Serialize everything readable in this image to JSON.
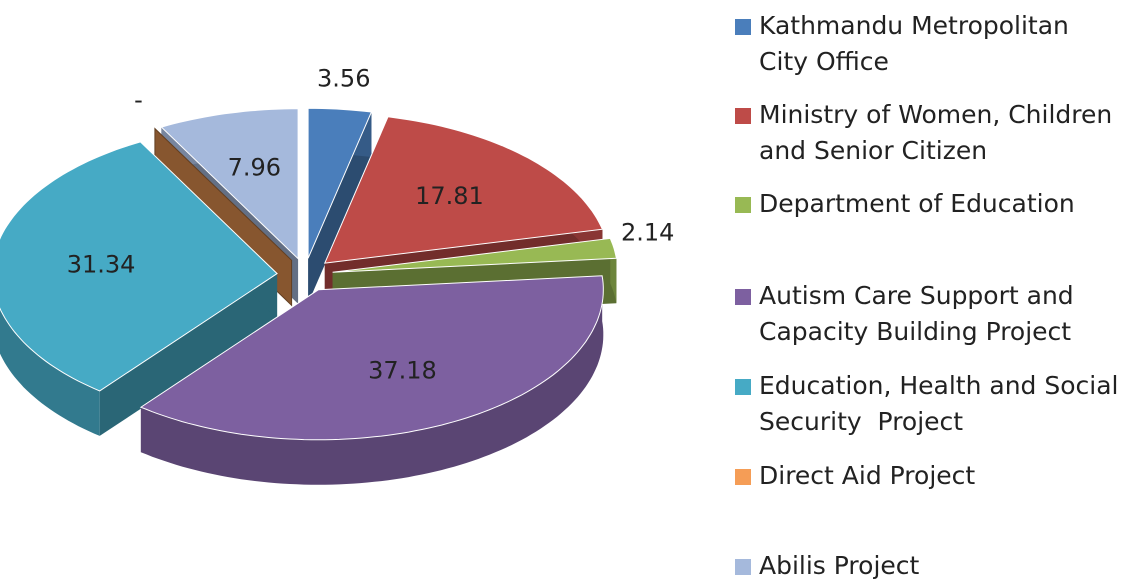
{
  "chart_data": {
    "type": "pie",
    "categories": [
      "Kathmandu Metropolitan City Office",
      "Ministry of Women, Children and Senior Citizen",
      "Department of Education",
      "Autism Care Support and Capacity Building Project",
      "Education, Health and Social Security  Project",
      "Direct Aid Project",
      "Abilis Project"
    ],
    "values": [
      3.56,
      17.81,
      2.14,
      37.18,
      31.34,
      0,
      7.96
    ],
    "value_labels": [
      "3.56",
      "17.81",
      "2.14",
      "37.18",
      "31.34",
      "-",
      "7.96"
    ],
    "colors": [
      "#4a7ebb",
      "#be4b48",
      "#98b954",
      "#7d60a0",
      "#46aac5",
      "#f59d56",
      "#a5b9dc"
    ],
    "legend": "right"
  }
}
